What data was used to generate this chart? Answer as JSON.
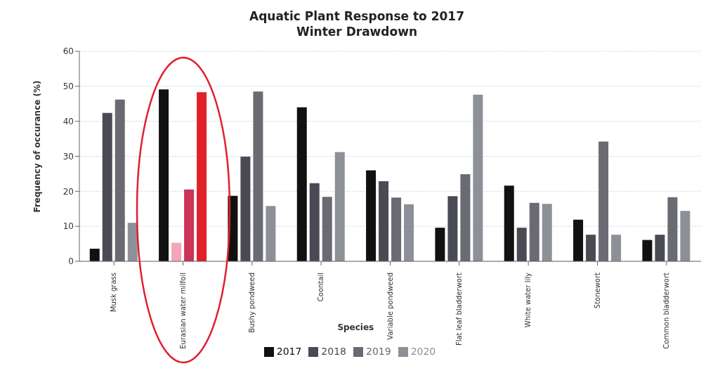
{
  "chart_data": {
    "type": "bar",
    "title": "Aquatic Plant Response to 2017\nWinter Drawdown",
    "xlabel": "Species",
    "ylabel": "Frequency of occurance (%)",
    "categories": [
      "Musk grass",
      "Eurasian water milfoil",
      "Bushy pondweed",
      "Coontail",
      "Variable pondweed",
      "Flat leaf bladderwort",
      "White water lily",
      "Stonewort",
      "Common bladderwort"
    ],
    "series": [
      {
        "name": "2017",
        "color": "#111111",
        "colors": [
          "#111111",
          "#111111",
          "#111111",
          "#111111",
          "#111111",
          "#111111",
          "#111111",
          "#111111",
          "#111111"
        ],
        "values": [
          3.6,
          49.1,
          18.7,
          44.0,
          26.0,
          9.6,
          21.6,
          11.9,
          6.1
        ]
      },
      {
        "name": "2018",
        "color": "#4a4a55",
        "colors": [
          "#4a4a55",
          "#f4a6b8",
          "#4a4a55",
          "#4a4a55",
          "#4a4a55",
          "#4a4a55",
          "#4a4a55",
          "#4a4a55",
          "#4a4a55"
        ],
        "values": [
          42.4,
          5.3,
          29.9,
          22.3,
          22.9,
          18.6,
          9.6,
          7.6,
          7.6
        ]
      },
      {
        "name": "2019",
        "color": "#6a6a72",
        "colors": [
          "#6a6a72",
          "#cc3355",
          "#6a6a72",
          "#6a6a72",
          "#6a6a72",
          "#6a6a72",
          "#6a6a72",
          "#6a6a72",
          "#6a6a72"
        ],
        "values": [
          46.2,
          20.5,
          48.5,
          18.4,
          18.2,
          24.9,
          16.7,
          34.2,
          18.3
        ]
      },
      {
        "name": "2020",
        "color": "#8e9098",
        "colors": [
          "#8e9098",
          "#e0202a",
          "#8e9098",
          "#8e9098",
          "#8e9098",
          "#8e9098",
          "#8e9098",
          "#8e9098",
          "#8e9098"
        ],
        "values": [
          11.0,
          48.3,
          15.8,
          31.2,
          16.3,
          47.6,
          16.4,
          7.6,
          14.4
        ]
      }
    ],
    "ylim": [
      0,
      60
    ],
    "yticks": [
      0,
      10,
      20,
      30,
      40,
      50,
      60
    ],
    "grid": "y",
    "legend": "bottom"
  }
}
